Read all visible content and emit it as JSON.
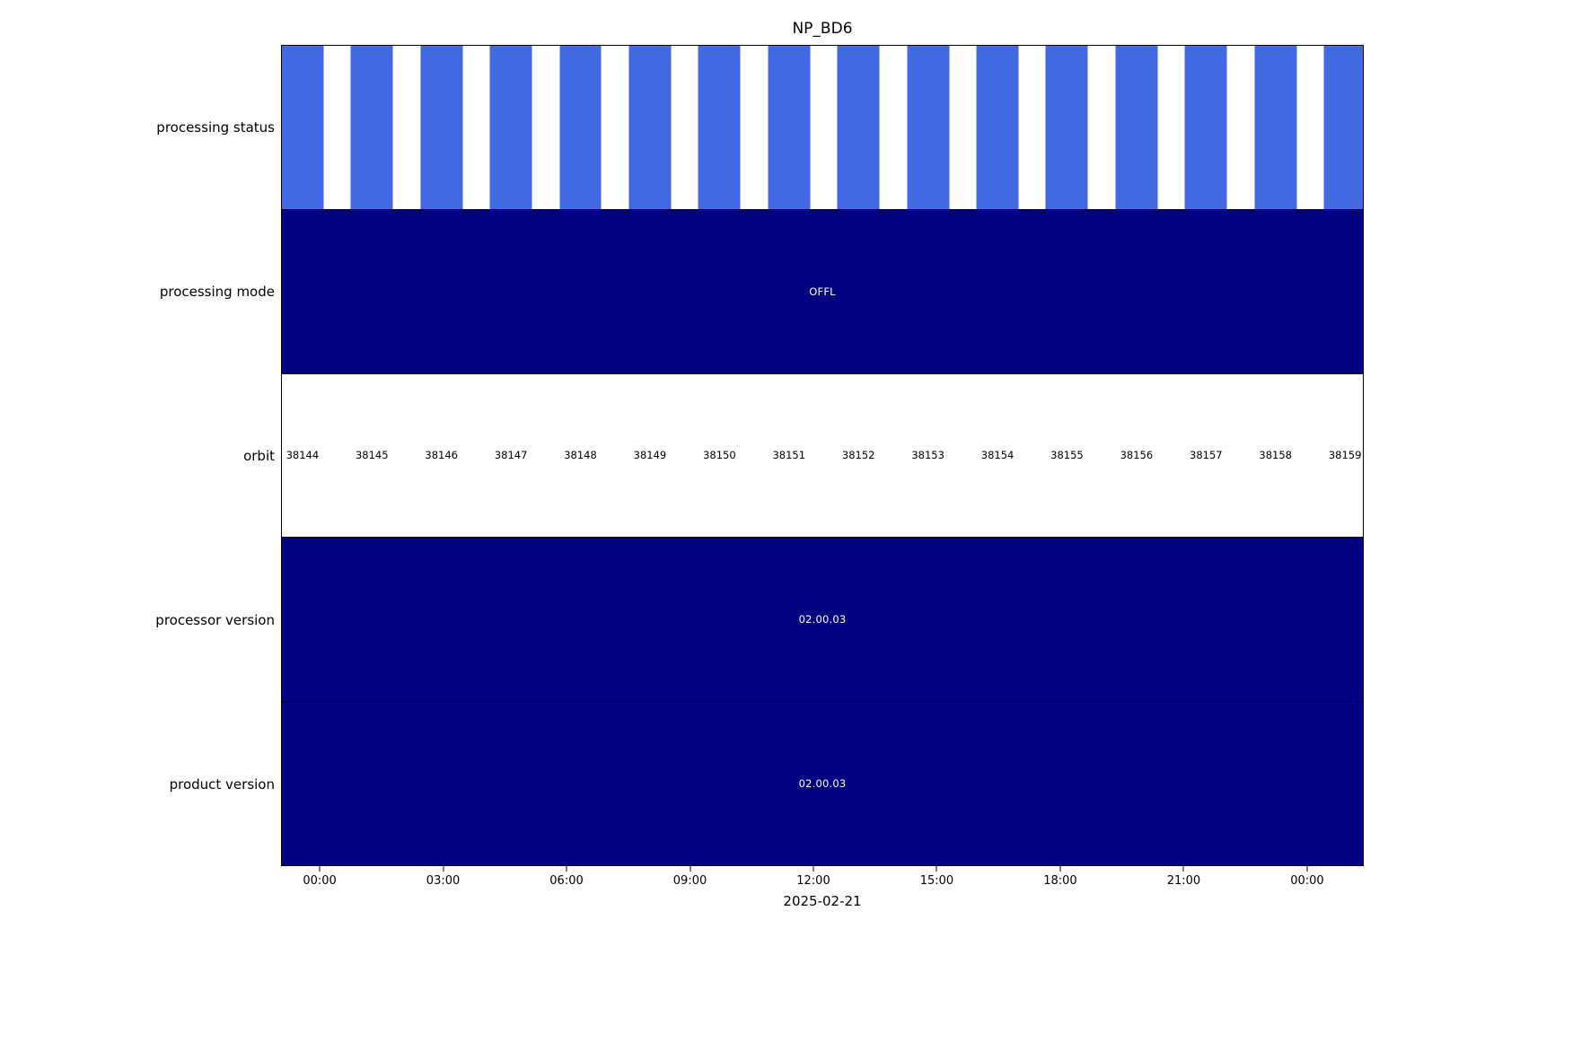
{
  "chart_data": {
    "type": "timeline",
    "title": "NP_BD6",
    "date_label": "2025-02-21",
    "x_ticks": [
      "00:00",
      "03:00",
      "06:00",
      "09:00",
      "12:00",
      "15:00",
      "18:00",
      "21:00",
      "00:00"
    ],
    "orbits": [
      "38144",
      "38145",
      "38146",
      "38147",
      "38148",
      "38149",
      "38150",
      "38151",
      "38152",
      "38153",
      "38154",
      "38155",
      "38156",
      "38157",
      "38158",
      "38159"
    ],
    "colors": {
      "status_bar": "#4169e1",
      "solid_band": "#000080",
      "band_text": "#ffffff"
    },
    "rows": [
      {
        "label": "processing status",
        "type": "striped_bars"
      },
      {
        "label": "processing mode",
        "type": "solid",
        "value": "OFFL"
      },
      {
        "label": "orbit",
        "type": "orbit_labels"
      },
      {
        "label": "processor version",
        "type": "solid",
        "value": "02.00.03"
      },
      {
        "label": "product version",
        "type": "solid",
        "value": "02.00.03"
      }
    ],
    "layout": {
      "legend": "none",
      "grid": "off",
      "x_axis_span_hours": "approx 23:00 prev day to 01:20 next day"
    }
  }
}
